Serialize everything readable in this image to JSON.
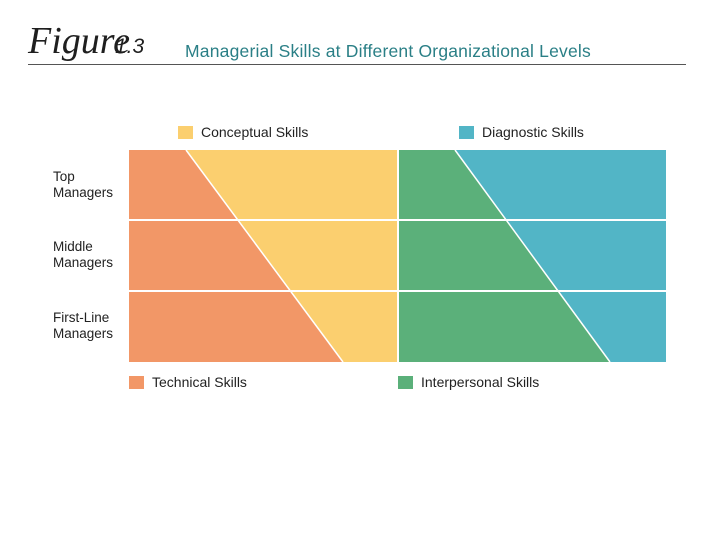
{
  "header": {
    "figure_word": "Figure",
    "figure_number": "1.3",
    "title": "Managerial Skills at Different Organizational Levels"
  },
  "legend": {
    "conceptual": {
      "label": "Conceptual Skills",
      "color": "#fbcf6f"
    },
    "diagnostic": {
      "label": "Diagnostic Skills",
      "color": "#52b5c6"
    },
    "technical": {
      "label": "Technical Skills",
      "color": "#f29767"
    },
    "interpersonal": {
      "label": "Interpersonal Skills",
      "color": "#5bb07a"
    }
  },
  "rows": [
    {
      "line1": "Top",
      "line2": "Managers"
    },
    {
      "line1": "Middle",
      "line2": "Managers"
    },
    {
      "line1": "First-Line",
      "line2": "Managers"
    }
  ]
}
